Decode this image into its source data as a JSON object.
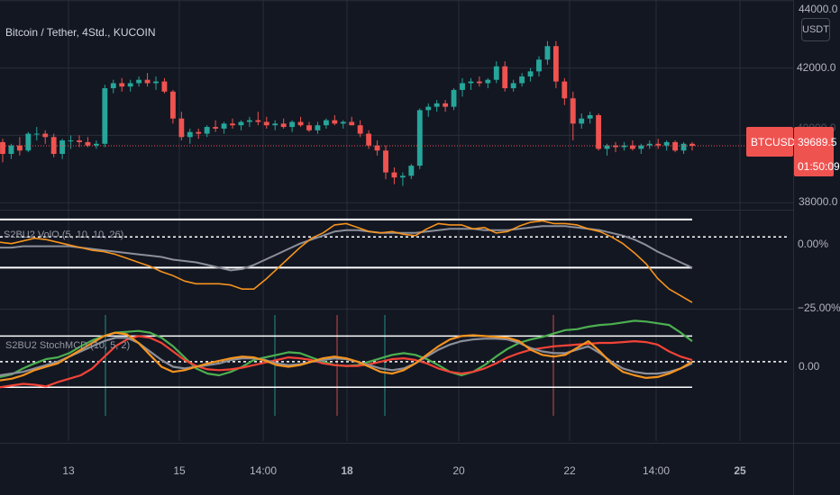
{
  "header": {
    "title": "Bitcoin / Tether, 4Std., KUCOIN",
    "currency": "USDT"
  },
  "price_axis": {
    "top_partial_label": "44000.0",
    "labels": [
      "42000.0",
      "38000.0"
    ],
    "hidden_label": "40000.0"
  },
  "last_price_tag": {
    "symbol": "BTCUSDT",
    "price": "39689.5",
    "countdown": "01:50:09"
  },
  "indicator1": {
    "title": "S2BU2 VolO (5, 10, 10, 26)",
    "axis_labels": [
      "0.00%",
      "−25.00%"
    ]
  },
  "indicator2": {
    "title": "S2BU2 StochMCD (10, 5, 2)",
    "axis_labels": [
      "0.00"
    ]
  },
  "time_axis": {
    "labels": [
      "13",
      "15",
      "14:00",
      "18",
      "20",
      "22",
      "14:00",
      "25"
    ],
    "bold_indices": [
      3,
      7
    ]
  },
  "colors": {
    "background": "#131722",
    "up": "#26a69a",
    "down": "#ef5350",
    "orange": "#f5931e",
    "gray": "#8c8f99",
    "green_line": "#4caf50",
    "red_line": "#f44336",
    "band": "#ffffff",
    "grid": "#2a2e39"
  },
  "chart_data": [
    {
      "type": "candlestick",
      "title": "Bitcoin / Tether, 4Std., KUCOIN",
      "y_unit": "USDT",
      "ylim": [
        37820,
        44020
      ],
      "x_labels": [
        "13",
        "15",
        "14:00",
        "18",
        "20",
        "22",
        "14:00",
        "25"
      ],
      "last_price": 39689.5,
      "candles": [
        [
          39800,
          39900,
          39200,
          39450
        ],
        [
          39450,
          39750,
          39300,
          39700
        ],
        [
          39700,
          39950,
          39400,
          39550
        ],
        [
          39550,
          40100,
          39500,
          40050
        ],
        [
          40050,
          40250,
          39850,
          40050
        ],
        [
          40050,
          40150,
          39750,
          39950
        ],
        [
          39950,
          40050,
          39350,
          39450
        ],
        [
          39450,
          39900,
          39300,
          39850
        ],
        [
          39850,
          40000,
          39600,
          39850
        ],
        [
          39850,
          40000,
          39650,
          39800
        ],
        [
          39800,
          39950,
          39650,
          39700
        ],
        [
          39700,
          39850,
          39600,
          39750
        ],
        [
          39750,
          41500,
          39650,
          41400
        ],
        [
          41400,
          41650,
          41250,
          41550
        ],
        [
          41550,
          41700,
          41300,
          41450
        ],
        [
          41450,
          41650,
          41300,
          41550
        ],
        [
          41550,
          41750,
          41450,
          41650
        ],
        [
          41650,
          41850,
          41450,
          41550
        ],
        [
          41550,
          41750,
          41350,
          41600
        ],
        [
          41600,
          41700,
          41250,
          41300
        ],
        [
          41300,
          41350,
          40350,
          40500
        ],
        [
          40500,
          40700,
          39850,
          39950
        ],
        [
          39950,
          40200,
          39750,
          40100
        ],
        [
          40100,
          40200,
          39900,
          40050
        ],
        [
          40050,
          40300,
          39950,
          40250
        ],
        [
          40250,
          40450,
          40100,
          40200
        ],
        [
          40200,
          40400,
          40050,
          40350
        ],
        [
          40350,
          40500,
          40200,
          40300
        ],
        [
          40300,
          40450,
          40150,
          40400
        ],
        [
          40400,
          40550,
          40250,
          40450
        ],
        [
          40450,
          40700,
          40300,
          40400
        ],
        [
          40400,
          40550,
          40200,
          40300
        ],
        [
          40300,
          40450,
          40150,
          40350
        ],
        [
          40350,
          40500,
          40200,
          40250
        ],
        [
          40250,
          40450,
          40100,
          40400
        ],
        [
          40400,
          40550,
          40250,
          40300
        ],
        [
          40300,
          40400,
          40100,
          40150
        ],
        [
          40150,
          40400,
          40050,
          40300
        ],
        [
          40300,
          40500,
          40200,
          40450
        ],
        [
          40450,
          40600,
          40300,
          40350
        ],
        [
          40350,
          40450,
          40200,
          40400
        ],
        [
          40400,
          40550,
          40300,
          40300
        ],
        [
          40300,
          40450,
          39950,
          40050
        ],
        [
          40050,
          40150,
          39600,
          39700
        ],
        [
          39700,
          39850,
          39400,
          39550
        ],
        [
          39550,
          39700,
          38700,
          38900
        ],
        [
          38900,
          39050,
          38550,
          38750
        ],
        [
          38750,
          38900,
          38500,
          38800
        ],
        [
          38800,
          39150,
          38700,
          39100
        ],
        [
          39100,
          40800,
          39000,
          40750
        ],
        [
          40750,
          40950,
          40550,
          40850
        ],
        [
          40850,
          41050,
          40700,
          40950
        ],
        [
          40950,
          41050,
          40700,
          40850
        ],
        [
          40850,
          41400,
          40750,
          41350
        ],
        [
          41350,
          41700,
          41150,
          41550
        ],
        [
          41550,
          41700,
          41350,
          41600
        ],
        [
          41600,
          41750,
          41450,
          41550
        ],
        [
          41550,
          41700,
          41400,
          41650
        ],
        [
          41650,
          42200,
          41550,
          42050
        ],
        [
          42050,
          42200,
          41300,
          41400
        ],
        [
          41400,
          41650,
          41300,
          41550
        ],
        [
          41550,
          41850,
          41450,
          41750
        ],
        [
          41750,
          42000,
          41600,
          41900
        ],
        [
          41900,
          42350,
          41750,
          42250
        ],
        [
          42250,
          42800,
          42100,
          42650
        ],
        [
          42650,
          42800,
          41400,
          41600
        ],
        [
          41600,
          41700,
          40900,
          41100
        ],
        [
          41100,
          41300,
          39850,
          40350
        ],
        [
          40350,
          40650,
          40200,
          40500
        ],
        [
          40500,
          40700,
          40350,
          40600
        ],
        [
          40600,
          40650,
          39550,
          39600
        ],
        [
          39600,
          39750,
          39400,
          39700
        ],
        [
          39700,
          39800,
          39500,
          39650
        ],
        [
          39650,
          39800,
          39550,
          39700
        ],
        [
          39700,
          39850,
          39550,
          39600
        ],
        [
          39600,
          39750,
          39450,
          39700
        ],
        [
          39700,
          39850,
          39600,
          39750
        ],
        [
          39750,
          39900,
          39600,
          39700
        ],
        [
          39700,
          39850,
          39550,
          39800
        ],
        [
          39800,
          39850,
          39500,
          39550
        ],
        [
          39550,
          39800,
          39450,
          39750
        ],
        [
          39750,
          39800,
          39550,
          39690
        ]
      ]
    },
    {
      "type": "line",
      "title": "S2BU2 VolO (5, 10, 10, 26)",
      "y_unit": "%",
      "ylim": [
        -26.5,
        9.5
      ],
      "series": [
        {
          "color": "#f5931e",
          "values": [
            -2,
            -2.5,
            -1.5,
            -0.5,
            -1,
            -2,
            -3,
            -4,
            -5,
            -5.5,
            -6.5,
            -8,
            -9.5,
            -11,
            -13,
            -14.5,
            -16.5,
            -17.5,
            -17.5,
            -17.5,
            -18,
            -19.5,
            -19.5,
            -16,
            -12,
            -8,
            -4,
            -0.5,
            1.5,
            4.5,
            5,
            3.5,
            2,
            1.5,
            2,
            1,
            0.5,
            3,
            5,
            4.5,
            4.5,
            3,
            3.5,
            1.5,
            2,
            4,
            5.5,
            6,
            5,
            5,
            4.5,
            3,
            2,
            0,
            -2.5,
            -6,
            -10,
            -15.5,
            -19.5,
            -22,
            -24.5
          ]
        },
        {
          "color": "#8c8f99",
          "values": [
            -4,
            -4,
            -3.5,
            -3.5,
            -3.5,
            -3.5,
            -3.5,
            -4,
            -4.5,
            -5,
            -5.5,
            -6,
            -6.5,
            -7,
            -7.5,
            -8.5,
            -9,
            -9.5,
            -10.5,
            -11.5,
            -12.5,
            -12,
            -10.5,
            -8.5,
            -6.5,
            -4.5,
            -2.5,
            -1,
            0.5,
            2,
            2.5,
            2.5,
            2,
            1.5,
            1.5,
            1.5,
            1.5,
            2,
            2.5,
            3,
            3,
            3,
            2.5,
            2.5,
            2.5,
            3,
            3.5,
            4,
            4,
            4,
            3.5,
            3,
            2.5,
            1.5,
            0.5,
            -1,
            -3,
            -5.5,
            -7.5,
            -9.5,
            -11.5
          ]
        },
        {
          "color": "#ffffff",
          "values": [
            6.5,
            6.5,
            6.5,
            6.5,
            6.5,
            6.5,
            6.5,
            6.5,
            6.5,
            6.5,
            6.5,
            6.5,
            6.5,
            6.5,
            6.5,
            6.5,
            6.5,
            6.5,
            6.5,
            6.5,
            6.5,
            6.5,
            6.5,
            6.5,
            6.5,
            6.5,
            6.5,
            6.5,
            6.5,
            6.5,
            6.5,
            6.5,
            6.5,
            6.5,
            6.5,
            6.5,
            6.5,
            6.5,
            6.5,
            6.5,
            6.5,
            6.5,
            6.5,
            6.5,
            6.5,
            6.5,
            6.5,
            6.5,
            6.5,
            6.5,
            6.5,
            6.5,
            6.5,
            6.5,
            6.5,
            6.5,
            6.5,
            6.5,
            6.5,
            6.5,
            6.5
          ]
        },
        {
          "color": "#ffffff",
          "values": [
            -11.5,
            -11.5,
            -11.5,
            -11.5,
            -11.5,
            -11.5,
            -11.5,
            -11.5,
            -11.5,
            -11.5,
            -11.5,
            -11.5,
            -11.5,
            -11.5,
            -11.5,
            -11.5,
            -11.5,
            -11.5,
            -11.5,
            -11.5,
            -11.5,
            -11.5,
            -11.5,
            -11.5,
            -11.5,
            -11.5,
            -11.5,
            -11.5,
            -11.5,
            -11.5,
            -11.5,
            -11.5,
            -11.5,
            -11.5,
            -11.5,
            -11.5,
            -11.5,
            -11.5,
            -11.5,
            -11.5,
            -11.5,
            -11.5,
            -11.5,
            -11.5,
            -11.5,
            -11.5,
            -11.5,
            -11.5,
            -11.5,
            -11.5,
            -11.5,
            -11.5,
            -11.5,
            -11.5,
            -11.5,
            -11.5,
            -11.5,
            -11.5,
            -11.5,
            -11.5,
            -11.5
          ]
        }
      ]
    },
    {
      "type": "line",
      "title": "S2BU2 StochMCD (10, 5, 2)",
      "ylim": [
        -0.93,
        0.6
      ],
      "series": [
        {
          "color": "#4caf50",
          "values": [
            -0.18,
            -0.15,
            -0.08,
            -0.02,
            0.03,
            0.05,
            0.1,
            0.18,
            0.25,
            0.3,
            0.34,
            0.35,
            0.36,
            0.34,
            0.28,
            0.18,
            0.05,
            -0.08,
            -0.14,
            -0.16,
            -0.12,
            -0.06,
            0.02,
            0.05,
            0.08,
            0.11,
            0.1,
            0.05,
            0,
            -0.04,
            -0.05,
            -0.04,
            0,
            0.04,
            0.08,
            0.1,
            0.08,
            0.03,
            -0.04,
            -0.12,
            -0.16,
            -0.12,
            -0.04,
            0.06,
            0.15,
            0.22,
            0.26,
            0.29,
            0.33,
            0.37,
            0.38,
            0.41,
            0.43,
            0.44,
            0.46,
            0.48,
            0.47,
            0.45,
            0.43,
            0.34,
            0.24
          ]
        },
        {
          "color": "#f44336",
          "values": [
            -0.3,
            -0.28,
            -0.26,
            -0.27,
            -0.29,
            -0.24,
            -0.2,
            -0.16,
            -0.08,
            0.05,
            0.18,
            0.26,
            0.3,
            0.28,
            0.22,
            0.12,
            0.02,
            -0.05,
            -0.09,
            -0.1,
            -0.09,
            -0.07,
            -0.04,
            -0.01,
            0.02,
            0.05,
            0.04,
            0.02,
            -0.02,
            -0.04,
            -0.05,
            -0.05,
            -0.03,
            0,
            0.03,
            0.04,
            0.02,
            -0.02,
            -0.08,
            -0.12,
            -0.14,
            -0.12,
            -0.08,
            -0.02,
            0.05,
            0.1,
            0.14,
            0.16,
            0.18,
            0.19,
            0.2,
            0.21,
            0.22,
            0.22,
            0.23,
            0.24,
            0.23,
            0.2,
            0.12,
            0.06,
            0.02
          ]
        },
        {
          "color": "#f5931e",
          "values": [
            -0.22,
            -0.2,
            -0.16,
            -0.1,
            -0.06,
            -0.02,
            0.06,
            0.14,
            0.22,
            0.3,
            0.34,
            0.32,
            0.22,
            0.08,
            -0.06,
            -0.12,
            -0.1,
            -0.06,
            -0.02,
            0.01,
            0.04,
            0.06,
            0.05,
            0.01,
            -0.04,
            -0.06,
            -0.04,
            0,
            0.04,
            0.06,
            0.04,
            0,
            -0.06,
            -0.12,
            -0.14,
            -0.1,
            -0.02,
            0.08,
            0.18,
            0.26,
            0.3,
            0.31,
            0.3,
            0.29,
            0.28,
            0.24,
            0.14,
            0.08,
            0.06,
            0.08,
            0.16,
            0.24,
            0.12,
            -0.02,
            -0.12,
            -0.16,
            -0.19,
            -0.18,
            -0.14,
            -0.08,
            0
          ]
        },
        {
          "color": "#8c8f99",
          "values": [
            -0.16,
            -0.14,
            -0.12,
            -0.08,
            -0.04,
            0,
            0.06,
            0.12,
            0.18,
            0.24,
            0.28,
            0.28,
            0.22,
            0.12,
            0.02,
            -0.06,
            -0.08,
            -0.06,
            -0.04,
            -0.02,
            0.02,
            0.04,
            0.04,
            0.02,
            -0.02,
            -0.04,
            -0.03,
            0,
            0.02,
            0.04,
            0.03,
            0,
            -0.04,
            -0.08,
            -0.1,
            -0.08,
            -0.02,
            0.06,
            0.14,
            0.2,
            0.24,
            0.26,
            0.27,
            0.27,
            0.26,
            0.22,
            0.16,
            0.12,
            0.1,
            0.1,
            0.14,
            0.18,
            0.1,
            0,
            -0.08,
            -0.12,
            -0.14,
            -0.14,
            -0.12,
            -0.08,
            -0.02
          ]
        }
      ]
    }
  ]
}
